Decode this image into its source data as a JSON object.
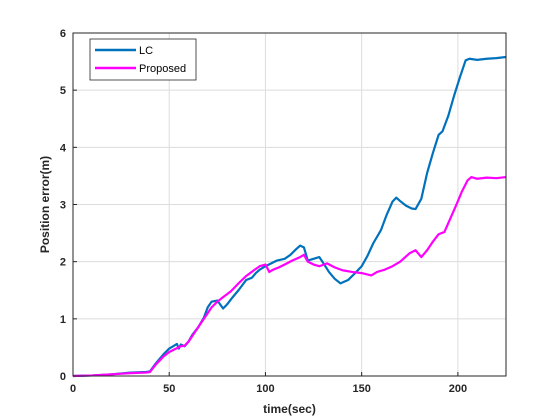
{
  "chart_data": {
    "type": "line",
    "title": "",
    "xlabel": "time(sec)",
    "ylabel": "Position error(m)",
    "xlim": [
      0,
      225
    ],
    "ylim": [
      0,
      6
    ],
    "xticks": [
      0,
      50,
      100,
      150,
      200
    ],
    "yticks": [
      0,
      1,
      2,
      3,
      4,
      5,
      6
    ],
    "grid": true,
    "legend_position": "top-left",
    "series": [
      {
        "name": "LC",
        "color": "#0072BD",
        "x": [
          0,
          10,
          20,
          30,
          38,
          40,
          43,
          47,
          50,
          52,
          54,
          55,
          56,
          58,
          60,
          62,
          65,
          68,
          70,
          72,
          75,
          78,
          80,
          83,
          86,
          90,
          93,
          95,
          97,
          100,
          103,
          106,
          110,
          113,
          116,
          118,
          120,
          122,
          125,
          128,
          130,
          133,
          136,
          139,
          141,
          143,
          146,
          150,
          153,
          156,
          160,
          163,
          166,
          168,
          170,
          173,
          176,
          178,
          181,
          184,
          187,
          190,
          192,
          195,
          198,
          201,
          204,
          206,
          210,
          215,
          220,
          225
        ],
        "y": [
          0,
          0.01,
          0.03,
          0.06,
          0.07,
          0.08,
          0.22,
          0.38,
          0.48,
          0.52,
          0.56,
          0.48,
          0.55,
          0.52,
          0.6,
          0.72,
          0.85,
          1.02,
          1.2,
          1.3,
          1.32,
          1.18,
          1.25,
          1.38,
          1.5,
          1.68,
          1.72,
          1.8,
          1.86,
          1.92,
          1.97,
          2.02,
          2.05,
          2.12,
          2.22,
          2.28,
          2.25,
          2.02,
          2.05,
          2.08,
          1.98,
          1.82,
          1.7,
          1.62,
          1.65,
          1.68,
          1.78,
          1.92,
          2.1,
          2.32,
          2.55,
          2.82,
          3.05,
          3.12,
          3.06,
          2.98,
          2.93,
          2.92,
          3.1,
          3.55,
          3.9,
          4.22,
          4.28,
          4.55,
          4.9,
          5.22,
          5.52,
          5.55,
          5.53,
          5.55,
          5.56,
          5.58
        ]
      },
      {
        "name": "Proposed",
        "color": "#FF00FF",
        "x": [
          0,
          10,
          20,
          30,
          38,
          40,
          43,
          47,
          50,
          53,
          56,
          58,
          60,
          63,
          66,
          69,
          72,
          75,
          78,
          82,
          86,
          90,
          94,
          97,
          100,
          102,
          104,
          107,
          110,
          114,
          118,
          120,
          122,
          125,
          128,
          132,
          136,
          140,
          145,
          150,
          155,
          158,
          162,
          166,
          170,
          175,
          178,
          181,
          184,
          187,
          190,
          193,
          196,
          199,
          202,
          205,
          207,
          210,
          215,
          220,
          225
        ],
        "y": [
          0,
          0.01,
          0.03,
          0.05,
          0.06,
          0.07,
          0.2,
          0.34,
          0.42,
          0.47,
          0.52,
          0.53,
          0.6,
          0.75,
          0.9,
          1.05,
          1.2,
          1.3,
          1.38,
          1.48,
          1.62,
          1.75,
          1.85,
          1.92,
          1.95,
          1.82,
          1.86,
          1.9,
          1.95,
          2.02,
          2.08,
          2.12,
          2.0,
          1.95,
          1.92,
          1.97,
          1.9,
          1.85,
          1.82,
          1.8,
          1.76,
          1.82,
          1.86,
          1.92,
          2.0,
          2.15,
          2.2,
          2.08,
          2.2,
          2.35,
          2.48,
          2.52,
          2.75,
          2.98,
          3.22,
          3.42,
          3.48,
          3.45,
          3.47,
          3.46,
          3.48
        ]
      }
    ]
  }
}
